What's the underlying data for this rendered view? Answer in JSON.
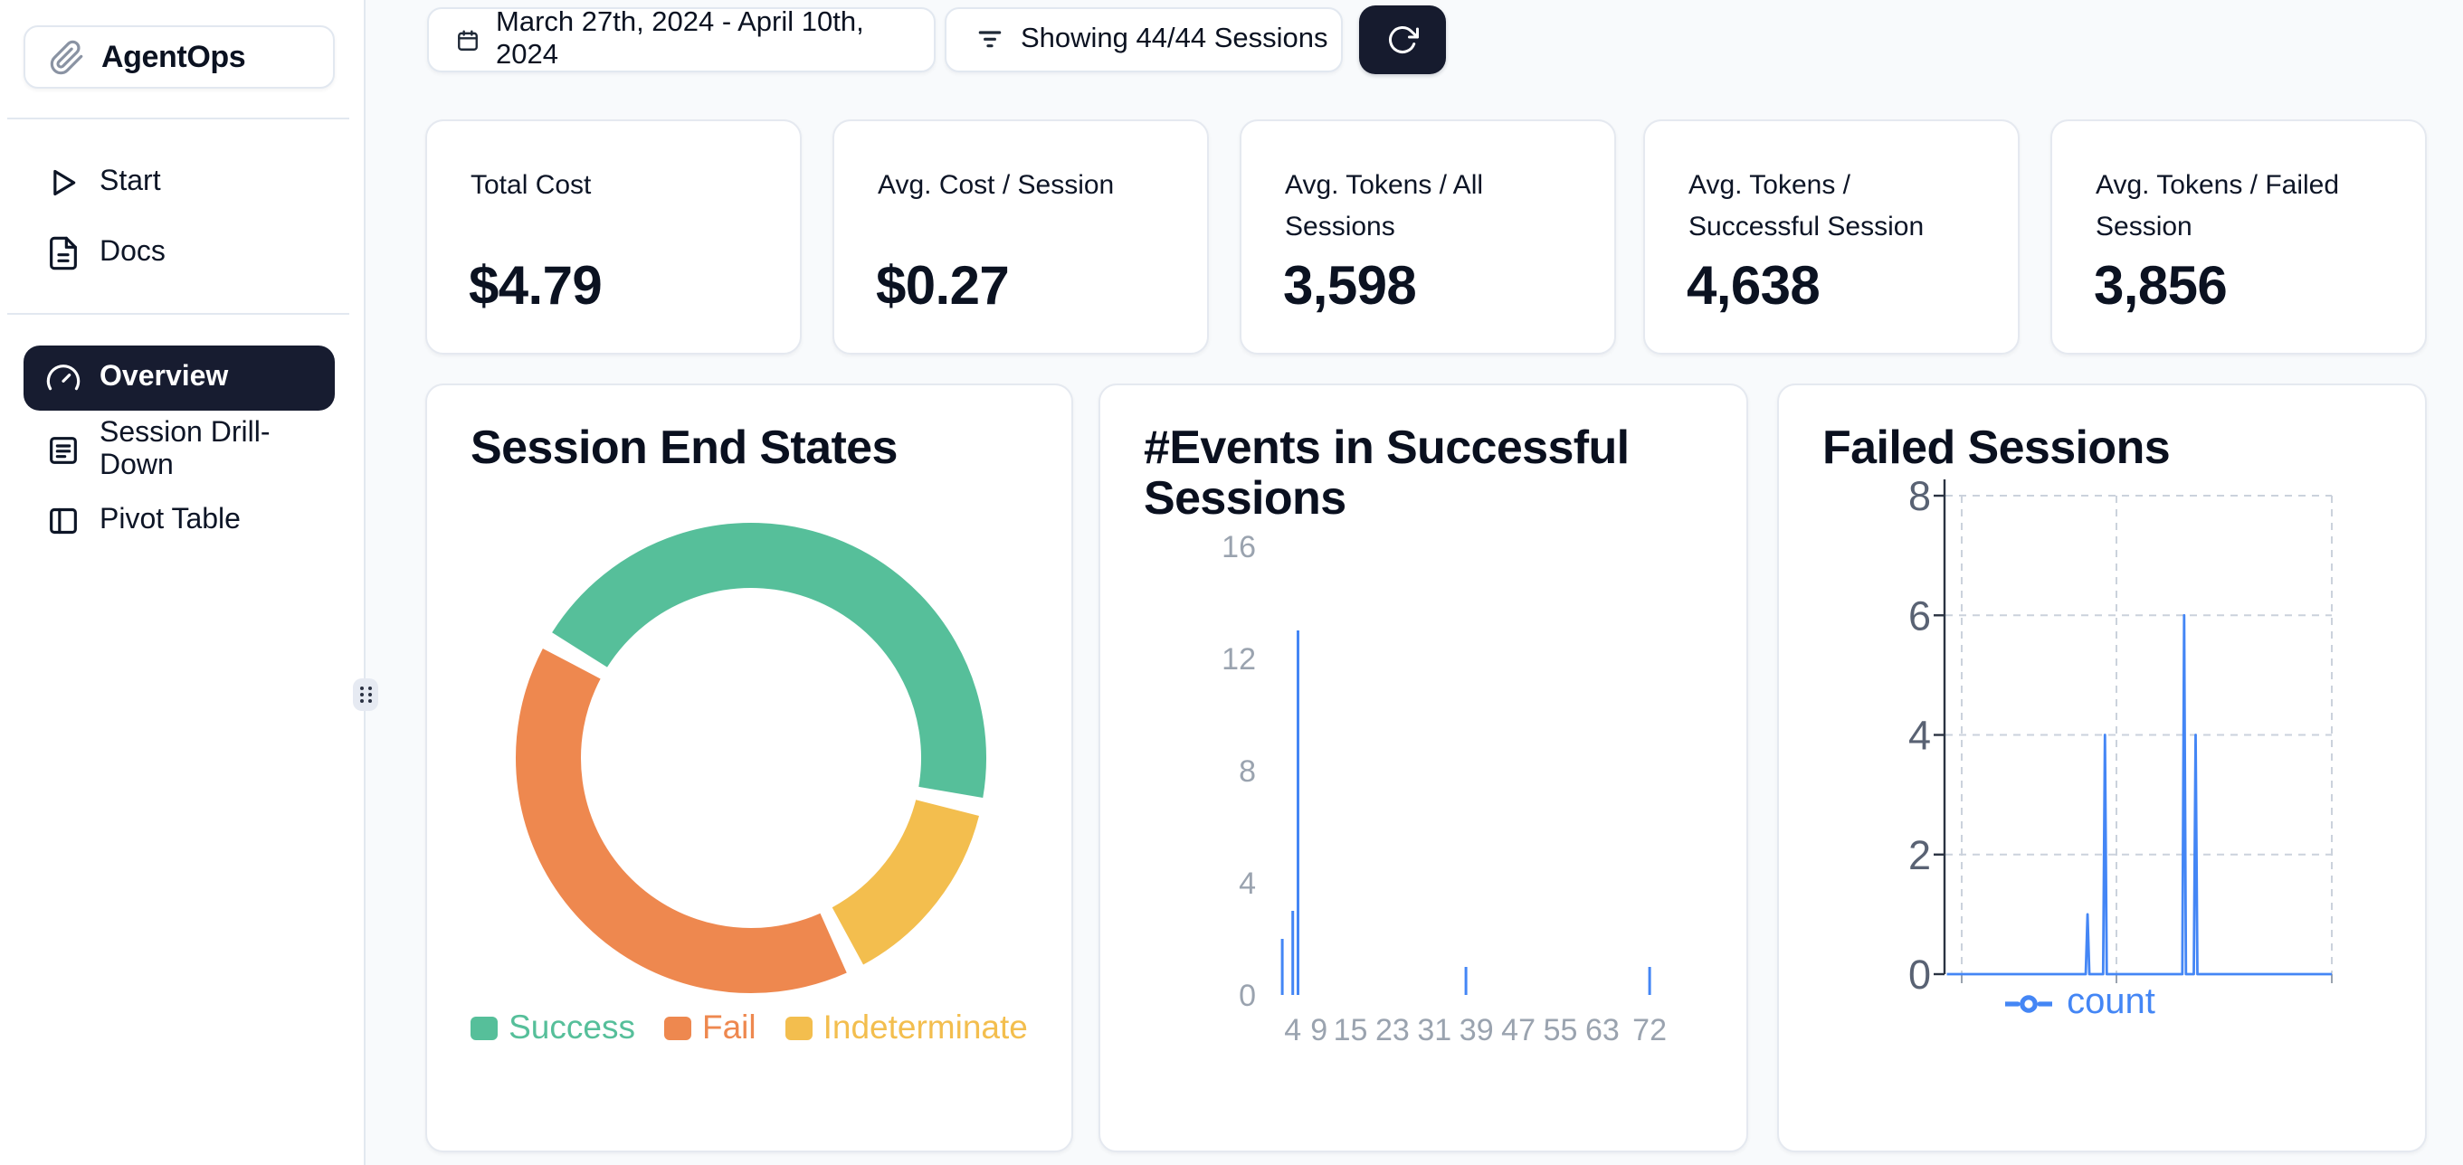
{
  "brand": {
    "name": "AgentOps"
  },
  "sidebar": {
    "items_top": [
      {
        "label": "Start"
      },
      {
        "label": "Docs"
      }
    ],
    "items_main": [
      {
        "label": "Overview"
      },
      {
        "label": "Session Drill-Down"
      },
      {
        "label": "Pivot Table"
      }
    ]
  },
  "topbar": {
    "date_range": "March 27th, 2024 - April 10th, 2024",
    "sessions_filter": "Showing 44/44 Sessions"
  },
  "stats": [
    {
      "label": "Total Cost",
      "value": "$4.79"
    },
    {
      "label": "Avg. Cost / Session",
      "value": "$0.27"
    },
    {
      "label": "Avg. Tokens / All Sessions",
      "value": "3,598"
    },
    {
      "label": "Avg. Tokens / Successful Session",
      "value": "4,638"
    },
    {
      "label": "Avg. Tokens / Failed Session",
      "value": "3,856"
    }
  ],
  "chart_data": [
    {
      "type": "pie",
      "title": "Session End States",
      "donut": true,
      "legend_position": "bottom",
      "start_angle": 300,
      "pad_angle": 4.5,
      "draw_order": [
        0,
        2,
        1
      ],
      "total_sessions": 44,
      "slices": [
        {
          "label": "Success",
          "value": 20,
          "color": "#56BF9A"
        },
        {
          "label": "Fail",
          "value": 18,
          "color": "#EE884F"
        },
        {
          "label": "Indeterminate",
          "value": 6,
          "color": "#F3BE4E"
        }
      ]
    },
    {
      "type": "bar",
      "title": "#Events in Successful Sessions",
      "xlabel": "",
      "ylabel": "",
      "x_ticks": [
        4,
        9,
        15,
        23,
        31,
        39,
        47,
        55,
        63,
        72
      ],
      "y_ticks": [
        0,
        4,
        8,
        12,
        16
      ],
      "xlim": [
        0,
        76
      ],
      "ylim": [
        0,
        16
      ],
      "grid": false,
      "bar_color": "#4486F5",
      "bars": [
        {
          "x": 2,
          "count": 2
        },
        {
          "x": 4,
          "count": 3
        },
        {
          "x": 5,
          "count": 13
        },
        {
          "x": 37,
          "count": 1
        },
        {
          "x": 72,
          "count": 1
        }
      ]
    },
    {
      "type": "line",
      "title": "Failed Sessions",
      "y_ticks": [
        0,
        2,
        4,
        6,
        8
      ],
      "ylim": [
        0,
        8
      ],
      "grid": "dashed",
      "legend_position": "bottom",
      "series": [
        {
          "name": "count",
          "color": "#4486F5",
          "baseline": 0,
          "spikes": [
            {
              "x_frac": 0.34,
              "count": 1
            },
            {
              "x_frac": 0.387,
              "count": 4
            },
            {
              "x_frac": 0.601,
              "count": 6
            },
            {
              "x_frac": 0.632,
              "count": 4
            }
          ]
        }
      ]
    }
  ],
  "colors": {
    "navy": "#161B2E",
    "page_bg": "#F8FAFC",
    "card_border": "#E5E9F0",
    "accent_blue": "#4486F5",
    "success_green": "#56BF9A",
    "fail_orange": "#EE884F",
    "indeterminate_yellow": "#F3BE4E"
  }
}
